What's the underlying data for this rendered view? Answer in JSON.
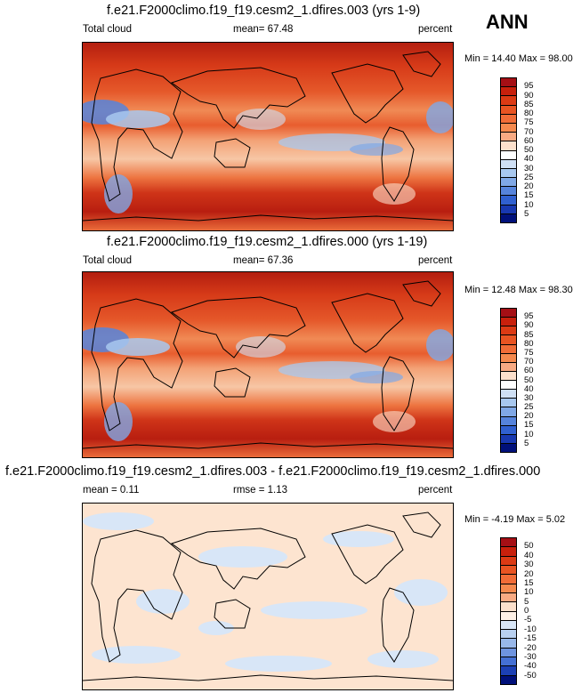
{
  "season": "ANN",
  "panels": [
    {
      "title": "f.e21.F2000climo.f19_f19.cesm2_1.dfires.003 (yrs 1-9)",
      "left_label": "Total cloud",
      "center_label": "mean=  67.48",
      "units": "percent",
      "minmax": "Min =  14.40 Max =  98.00",
      "levels": [
        "95",
        "90",
        "85",
        "80",
        "75",
        "70",
        "60",
        "50",
        "40",
        "30",
        "25",
        "20",
        "15",
        "10",
        "5"
      ],
      "colors": [
        "#a50f15",
        "#c8200c",
        "#dc3a14",
        "#e95422",
        "#f16c37",
        "#f5894e",
        "#f8aa83",
        "#fce0cc",
        "#ffffff",
        "#cfe0f5",
        "#a8c8ef",
        "#80a8e6",
        "#5684dc",
        "#3060d0",
        "#1838b0",
        "#00107a"
      ]
    },
    {
      "title": "f.e21.F2000climo.f19_f19.cesm2_1.dfires.000 (yrs 1-19)",
      "left_label": "Total cloud",
      "center_label": "mean=  67.36",
      "units": "percent",
      "minmax": "Min =  12.48 Max =  98.30",
      "levels": [
        "95",
        "90",
        "85",
        "80",
        "75",
        "70",
        "60",
        "50",
        "40",
        "30",
        "25",
        "20",
        "15",
        "10",
        "5"
      ],
      "colors": [
        "#a50f15",
        "#c8200c",
        "#dc3a14",
        "#e95422",
        "#f16c37",
        "#f5894e",
        "#f8aa83",
        "#fce0cc",
        "#ffffff",
        "#cfe0f5",
        "#a8c8ef",
        "#80a8e6",
        "#5684dc",
        "#3060d0",
        "#1838b0",
        "#00107a"
      ]
    },
    {
      "title": "f.e21.F2000climo.f19_f19.cesm2_1.dfires.003 - f.e21.F2000climo.f19_f19.cesm2_1.dfires.000",
      "left_label": "mean =  0.11",
      "center_label": "rmse =  1.13",
      "units": "percent",
      "minmax": "Min =  -4.19 Max =  5.02",
      "levels": [
        "50",
        "40",
        "30",
        "20",
        "15",
        "10",
        "5",
        "0",
        "-5",
        "-10",
        "-15",
        "-20",
        "-30",
        "-40",
        "-50"
      ],
      "colors": [
        "#a50f15",
        "#c8200c",
        "#dc3a14",
        "#e95422",
        "#f16c37",
        "#f5894e",
        "#f8aa83",
        "#fce0cc",
        "#fdf0e6",
        "#d8e6f7",
        "#b8d0f0",
        "#98b8ea",
        "#6e94e0",
        "#4470d4",
        "#1c40b4",
        "#00107a"
      ]
    }
  ]
}
